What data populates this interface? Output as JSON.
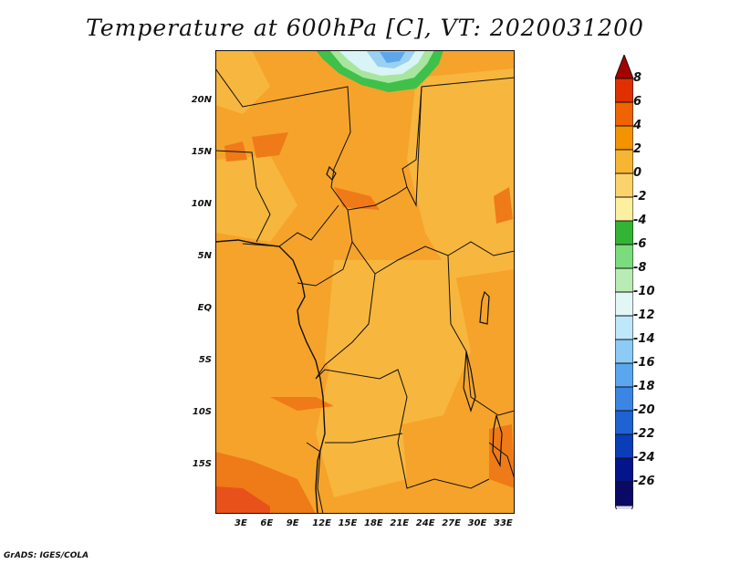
{
  "title": "Temperature at 600hPa [C], VT: 2020031200",
  "credit": "GrADS: IGES/COLA",
  "lat_labels": [
    "20N",
    "15N",
    "10N",
    "5N",
    "EQ",
    "5S",
    "10S",
    "15S"
  ],
  "lon_labels": [
    "3E",
    "6E",
    "9E",
    "12E",
    "15E",
    "18E",
    "21E",
    "24E",
    "27E",
    "30E",
    "33E"
  ],
  "colorbar": {
    "labels": [
      "8",
      "6",
      "4",
      "2",
      "0",
      "-2",
      "-4",
      "-6",
      "-8",
      "-10",
      "-12",
      "-14",
      "-16",
      "-18",
      "-20",
      "-22",
      "-24",
      "-26"
    ],
    "colors": [
      "#a50000",
      "#e03000",
      "#ef6300",
      "#f49300",
      "#f7b534",
      "#fbd36c",
      "#fdefa0",
      "#34b434",
      "#7cdb7c",
      "#b8ecb4",
      "#e2f6f6",
      "#bfe7fa",
      "#8ccbf5",
      "#5aa7ef",
      "#3b86e4",
      "#1f62d2",
      "#0b3db8",
      "#04148a",
      "#0a0a66",
      "#dcdcf4"
    ]
  },
  "map_colors": {
    "warm": "#f5a32a",
    "mid": "#f6b23e",
    "hot": "#f07c1a",
    "hotter": "#ea5a14",
    "pale": "#fcd27a",
    "green": "#3fc04a",
    "lightgreen": "#a8e6a0",
    "cyan": "#d8f4f6",
    "blue": "#70b6ee"
  }
}
